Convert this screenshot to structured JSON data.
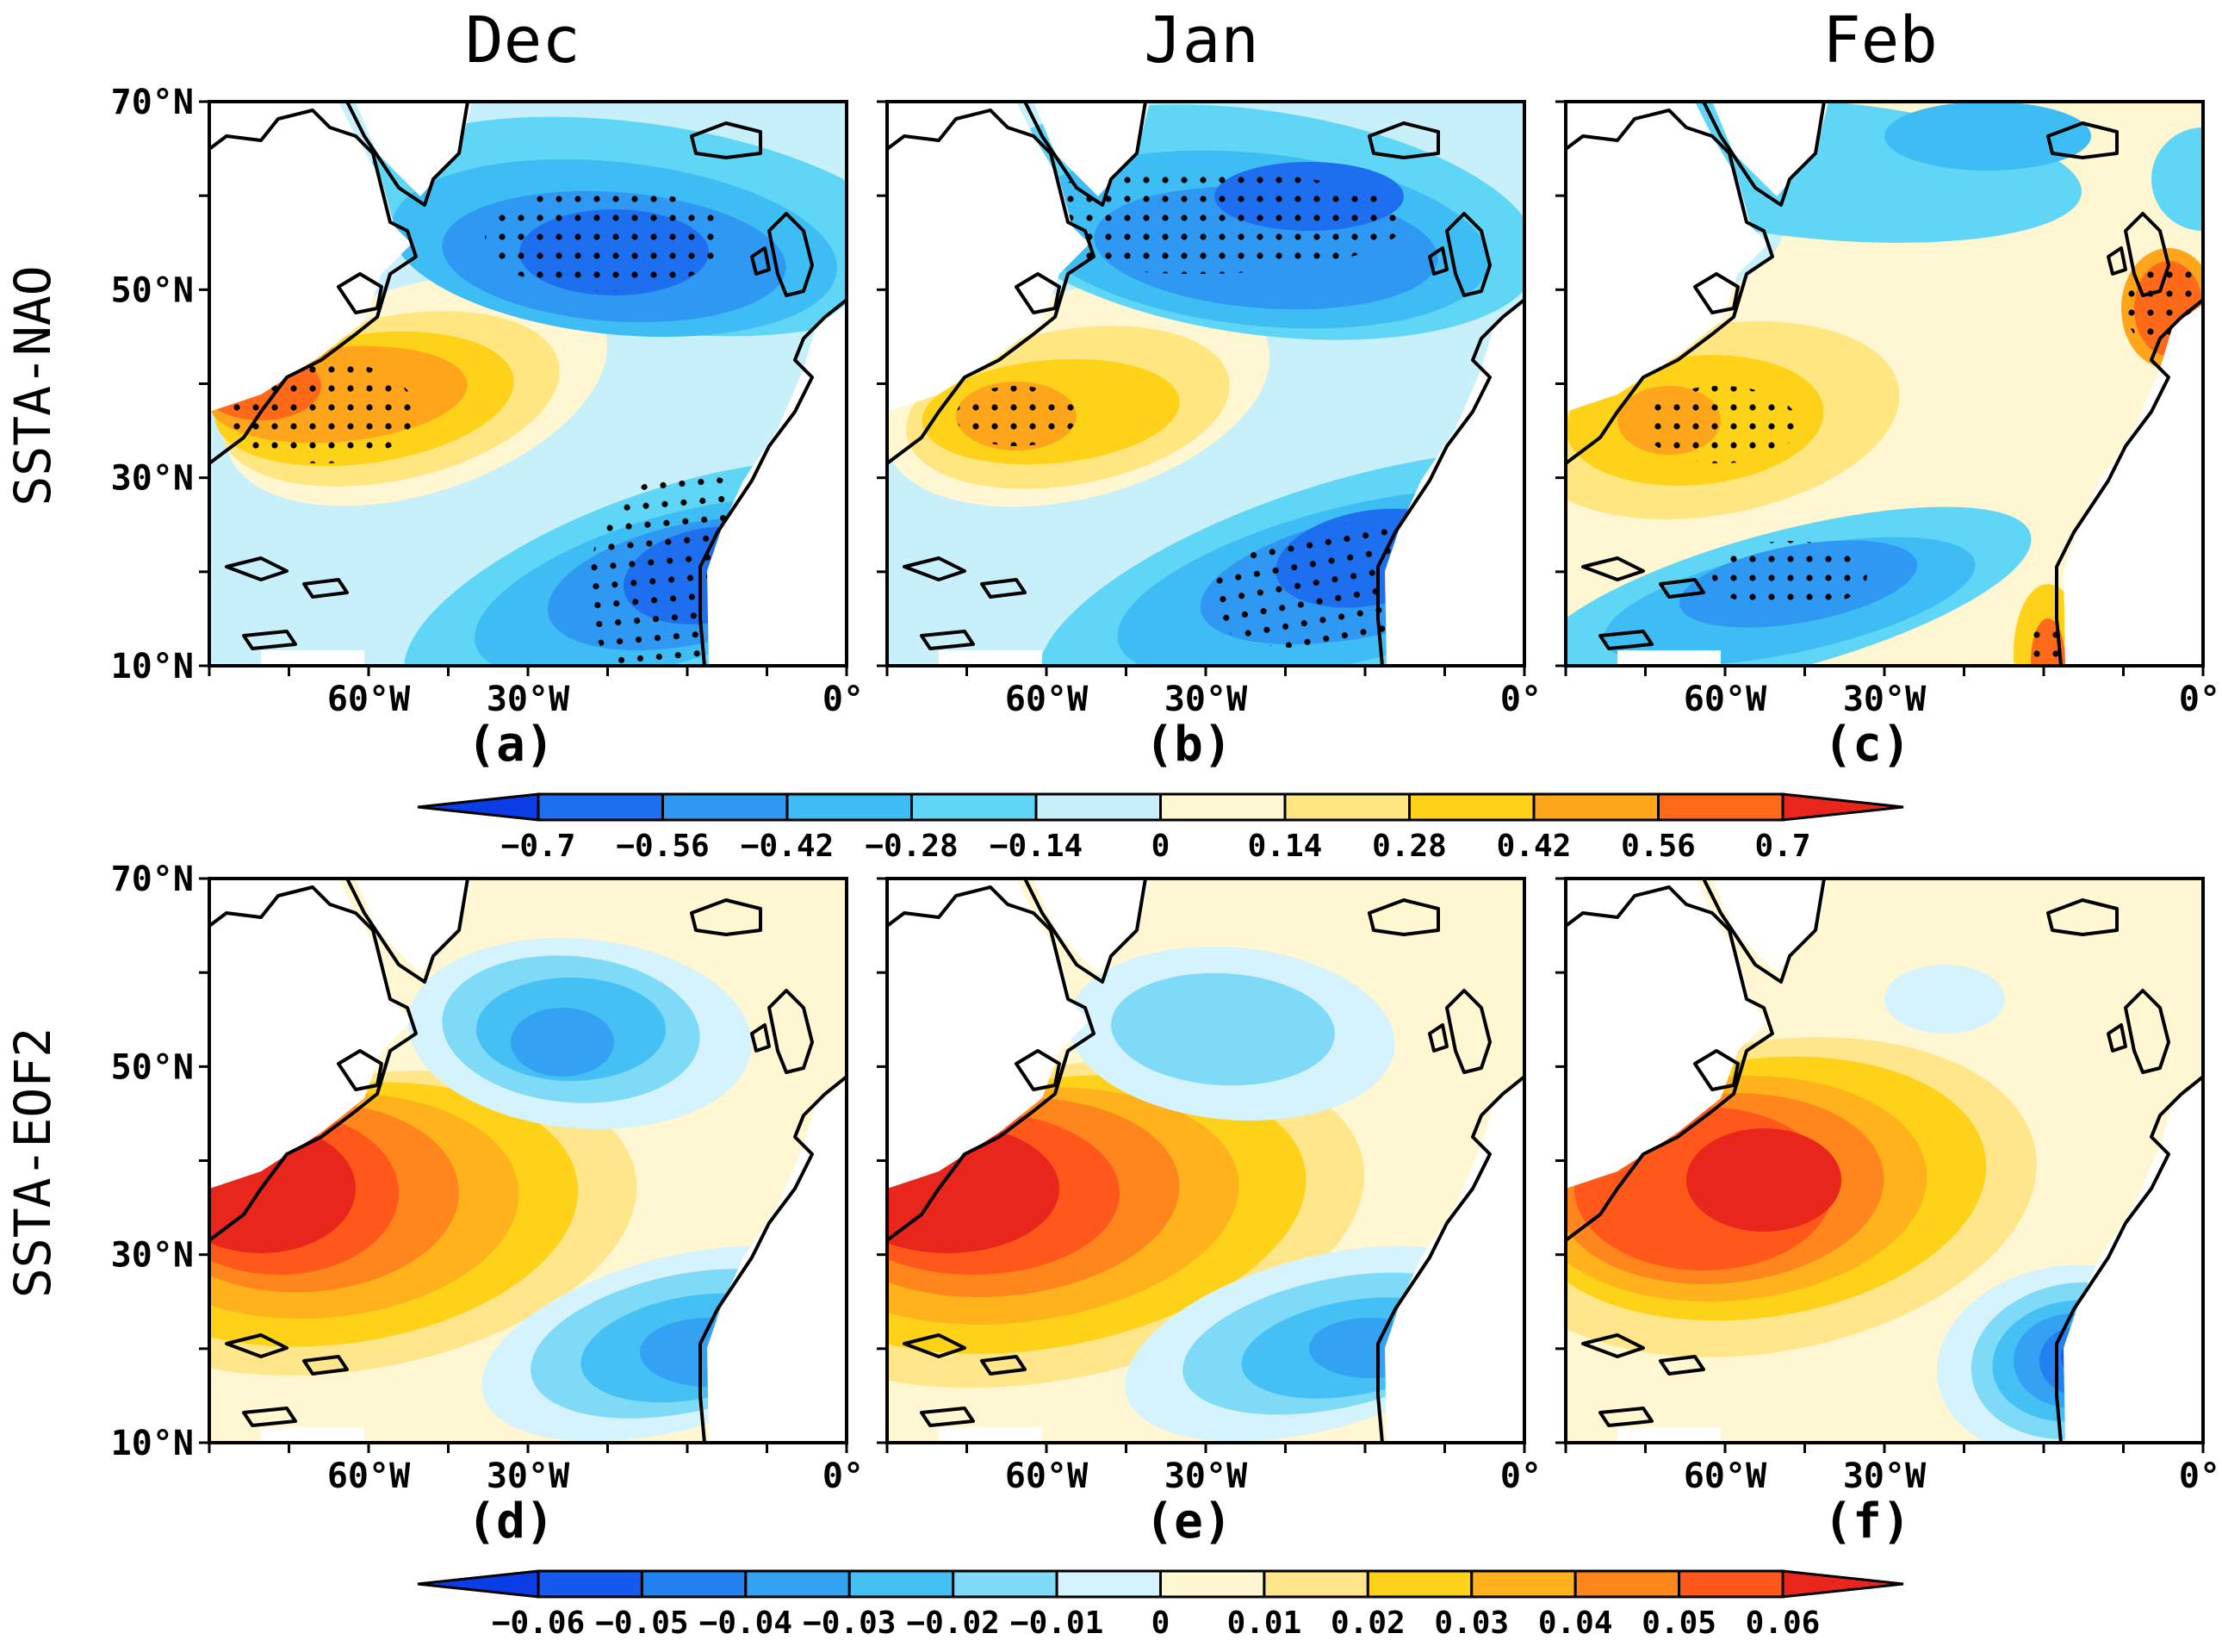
{
  "figure": {
    "columns": [
      "Dec",
      "Jan",
      "Feb"
    ],
    "rows": [
      "SSTA-NAO",
      "SSTA-EOF2"
    ],
    "lat_ticks": [
      "70°N",
      "50°N",
      "30°N",
      "10°N"
    ],
    "lon_ticks": [
      "60°W",
      "30°W",
      "0°"
    ],
    "panels": [
      {
        "label": "(a)",
        "row": 0,
        "col": 0
      },
      {
        "label": "(b)",
        "row": 0,
        "col": 1
      },
      {
        "label": "(c)",
        "row": 0,
        "col": 2
      },
      {
        "label": "(d)",
        "row": 1,
        "col": 0
      },
      {
        "label": "(e)",
        "row": 1,
        "col": 1
      },
      {
        "label": "(f)",
        "row": 1,
        "col": 2
      }
    ],
    "colorbar_top": {
      "labels": [
        "−0.7",
        "−0.56",
        "−0.42",
        "−0.28",
        "−0.14",
        "0",
        "0.14",
        "0.28",
        "0.42",
        "0.56",
        "0.7"
      ]
    },
    "colorbar_bottom": {
      "labels": [
        "−0.06",
        "−0.05",
        "−0.04",
        "−0.03",
        "−0.02",
        "−0.01",
        "0",
        "0.01",
        "0.02",
        "0.03",
        "0.04",
        "0.05",
        "0.06"
      ]
    },
    "palette_top": [
      "#0a3de6",
      "#1e6ff0",
      "#2f98f2",
      "#3ebcf4",
      "#5fd6f5",
      "#c8f0fb",
      "#fff6d2",
      "#ffe680",
      "#ffd21a",
      "#ffa51c",
      "#ff6a1a",
      "#e8261c"
    ],
    "palette_bottom": [
      "#0a3de6",
      "#1659ee",
      "#2380f0",
      "#33a2f2",
      "#45c0f4",
      "#7fdaf7",
      "#d4f3fc",
      "#fff6d2",
      "#ffe68a",
      "#ffd21a",
      "#ffb21c",
      "#ff861c",
      "#ff581a",
      "#e8261c"
    ]
  }
}
